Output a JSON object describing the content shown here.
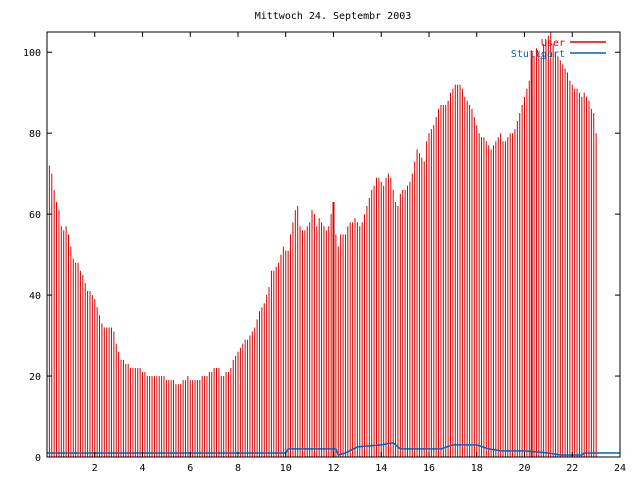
{
  "chart_data": {
    "type": "bar",
    "title": "Mittwoch 24. Septembr 2003",
    "xlabel": "",
    "ylabel": "",
    "xlim": [
      0,
      24
    ],
    "ylim": [
      0,
      105
    ],
    "grid": false,
    "legend_position": "top-right",
    "x_ticks": [
      "2",
      "4",
      "6",
      "8",
      "10",
      "12",
      "14",
      "16",
      "18",
      "20",
      "22",
      "24"
    ],
    "y_ticks": [
      "0",
      "20",
      "40",
      "60",
      "80",
      "100"
    ],
    "series": [
      {
        "name": "User",
        "color": "#d80000",
        "style": "impulses",
        "x_step_hours": 0.1,
        "values": [
          79,
          72,
          70,
          66,
          63,
          61,
          57,
          56,
          57,
          55,
          52,
          49,
          48,
          48,
          46,
          45,
          43,
          41,
          41,
          40,
          39,
          37,
          35,
          33,
          32,
          32,
          32,
          32,
          31,
          28,
          26,
          24,
          24,
          23,
          23,
          22,
          22,
          22,
          22,
          22,
          21,
          21,
          20,
          20,
          20,
          20,
          20,
          20,
          20,
          20,
          19,
          19,
          19,
          19,
          18,
          18,
          18,
          19,
          19,
          20,
          19,
          19,
          19,
          19,
          19,
          20,
          20,
          20,
          21,
          21,
          22,
          22,
          22,
          20,
          20,
          21,
          21,
          22,
          24,
          25,
          26,
          27,
          28,
          29,
          29,
          30,
          31,
          32,
          34,
          36,
          37,
          38,
          40,
          42,
          46,
          46,
          47,
          48,
          50,
          52,
          51,
          51,
          55,
          58,
          61,
          62,
          57,
          56,
          56,
          57,
          58,
          61,
          60,
          57,
          59,
          58,
          57,
          56,
          57,
          60,
          57,
          55,
          52,
          55,
          55,
          55,
          57,
          58,
          58,
          59,
          58,
          57,
          58,
          60,
          62,
          64,
          66,
          67,
          69,
          69,
          68,
          67,
          69,
          70,
          69,
          66,
          63,
          62,
          65,
          66,
          66,
          67,
          68,
          70,
          73,
          76,
          75,
          74,
          73,
          78,
          80,
          81,
          82,
          84,
          86,
          87,
          87,
          87,
          88,
          90,
          91,
          92,
          92,
          92,
          91,
          89,
          88,
          87,
          86,
          84,
          82,
          80,
          79,
          79,
          78,
          77,
          76,
          77,
          78,
          79,
          80,
          78,
          78,
          79,
          80,
          80,
          81,
          83,
          85,
          87,
          89,
          91,
          93,
          98,
          99,
          101,
          100,
          99,
          102,
          103,
          104,
          105,
          102,
          100,
          99,
          98,
          97,
          96,
          95,
          93,
          92,
          91,
          91,
          90,
          89,
          90,
          89,
          88,
          86,
          85,
          80
        ],
        "spikes": [
          {
            "x": 12.0,
            "value": 63
          },
          {
            "x": 20.3,
            "value": 100
          }
        ]
      },
      {
        "name": "Stuttgart",
        "color": "#0060c0",
        "style": "line",
        "points": [
          [
            0,
            1
          ],
          [
            10.0,
            1
          ],
          [
            10.1,
            2
          ],
          [
            12.1,
            2
          ],
          [
            12.2,
            0.5
          ],
          [
            12.5,
            1
          ],
          [
            13.0,
            2.5
          ],
          [
            14.0,
            3
          ],
          [
            14.5,
            3.5
          ],
          [
            14.8,
            2
          ],
          [
            15.5,
            2
          ],
          [
            16.5,
            2
          ],
          [
            17.0,
            3
          ],
          [
            18.0,
            3
          ],
          [
            18.5,
            2
          ],
          [
            19.0,
            1.5
          ],
          [
            20.0,
            1.5
          ],
          [
            21.0,
            1
          ],
          [
            21.5,
            0.5
          ],
          [
            22.4,
            0.5
          ],
          [
            22.5,
            1
          ],
          [
            24,
            1
          ]
        ]
      }
    ]
  }
}
